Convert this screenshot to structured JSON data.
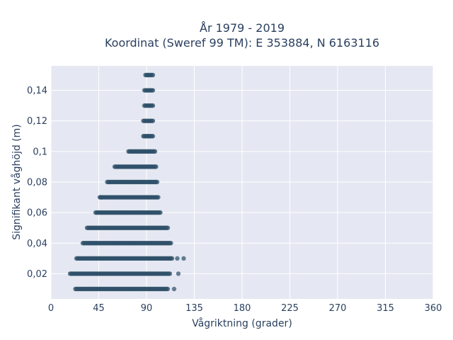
{
  "chart_data": {
    "type": "scatter",
    "title_line1": "År 1979 - 2019",
    "title_line2": "Koordinat (Sweref 99 TM): E 353884, N 6163116",
    "xlabel": "Vågriktning (grader)",
    "ylabel": "Signifikant våghöjd (m)",
    "xlim": [
      0,
      360
    ],
    "ylim": [
      0.0035,
      0.156
    ],
    "xticks": [
      0,
      45,
      90,
      135,
      180,
      225,
      270,
      315,
      360
    ],
    "xtick_labels": [
      "0",
      "45",
      "90",
      "135",
      "180",
      "225",
      "270",
      "315",
      "360"
    ],
    "yticks": [
      0.02,
      0.04,
      0.06,
      0.08,
      0.1,
      0.12,
      0.14
    ],
    "ytick_labels": [
      "0,02",
      "0,04",
      "0,06",
      "0,08",
      "0,1",
      "0,12",
      "0,14"
    ],
    "grid": true,
    "marker_color": "#2f5069",
    "background_color": "#e5e8f2",
    "grid_color": "#ffffff",
    "levels": [
      {
        "y": 0.01,
        "x_min": 23,
        "x_max": 110,
        "outliers": [
          116
        ]
      },
      {
        "y": 0.02,
        "x_min": 18,
        "x_max": 112,
        "outliers": [
          120
        ]
      },
      {
        "y": 0.03,
        "x_min": 24,
        "x_max": 114,
        "outliers": [
          119,
          125
        ]
      },
      {
        "y": 0.04,
        "x_min": 30,
        "x_max": 113,
        "outliers": []
      },
      {
        "y": 0.05,
        "x_min": 34,
        "x_max": 110,
        "outliers": []
      },
      {
        "y": 0.06,
        "x_min": 42,
        "x_max": 103,
        "outliers": []
      },
      {
        "y": 0.07,
        "x_min": 46,
        "x_max": 101,
        "outliers": [
          47
        ]
      },
      {
        "y": 0.08,
        "x_min": 53,
        "x_max": 100,
        "outliers": []
      },
      {
        "y": 0.09,
        "x_min": 60,
        "x_max": 99,
        "outliers": []
      },
      {
        "y": 0.1,
        "x_min": 73,
        "x_max": 98,
        "outliers": []
      },
      {
        "y": 0.11,
        "x_min": 87,
        "x_max": 96,
        "outliers": []
      },
      {
        "y": 0.12,
        "x_min": 87,
        "x_max": 96,
        "outliers": []
      },
      {
        "y": 0.13,
        "x_min": 88,
        "x_max": 96,
        "outliers": []
      },
      {
        "y": 0.14,
        "x_min": 88,
        "x_max": 96,
        "outliers": []
      },
      {
        "y": 0.15,
        "x_min": 89,
        "x_max": 96,
        "outliers": []
      }
    ]
  }
}
